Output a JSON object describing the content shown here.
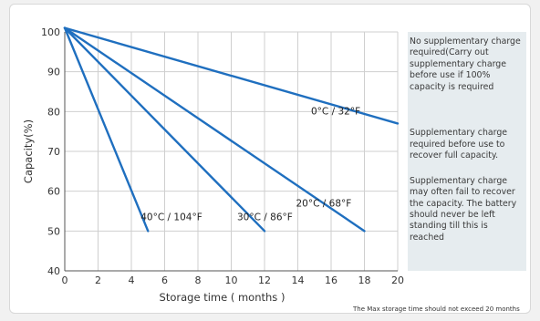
{
  "chart_data": {
    "type": "line",
    "title": "",
    "xlabel": "Storage time ( months )",
    "ylabel": "Capacity(%)",
    "xlim": [
      0,
      20
    ],
    "ylim": [
      40,
      100
    ],
    "x_ticks": [
      "0",
      "2",
      "4",
      "6",
      "8",
      "10",
      "12",
      "14",
      "16",
      "18",
      "20"
    ],
    "y_ticks": [
      "40",
      "50",
      "60",
      "70",
      "80",
      "90",
      "100"
    ],
    "grid": true,
    "series": [
      {
        "name": "0°C / 32°F",
        "color": "#1f6fbf",
        "x": [
          0,
          20
        ],
        "y": [
          101,
          77
        ]
      },
      {
        "name": "20°C / 68°F",
        "color": "#1f6fbf",
        "x": [
          0,
          18
        ],
        "y": [
          101,
          50
        ]
      },
      {
        "name": "30°C / 86°F",
        "color": "#1f6fbf",
        "x": [
          0,
          12
        ],
        "y": [
          101,
          50
        ]
      },
      {
        "name": "40°C / 104°F",
        "color": "#1f6fbf",
        "x": [
          0,
          5
        ],
        "y": [
          101,
          50
        ]
      }
    ],
    "zones": [
      {
        "text": "No supplementary charge required(Carry out supplementary charge before use if 100% capacity is required",
        "y_from": 77,
        "y_to": 100
      },
      {
        "text": "Supplementary charge required before use to recover full capacity.",
        "y_from": 65,
        "y_to": 77
      },
      {
        "text": "Supplementary charge may often fail to recover the capacity. The battery should never be left standing till this is reached",
        "y_from": 40,
        "y_to": 65
      }
    ],
    "footnote": "The Max storage time should not exceed 20 months"
  }
}
